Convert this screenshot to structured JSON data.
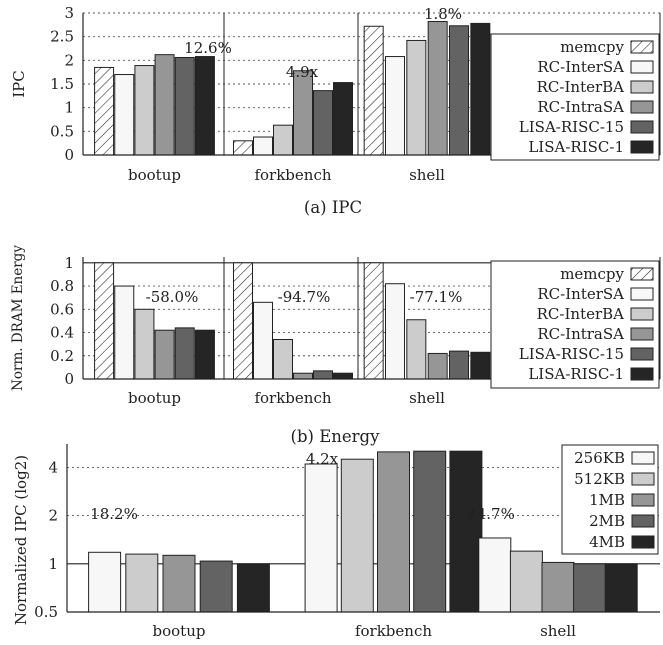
{
  "colors": {
    "memcpy": "#ffffff",
    "s1": "#f7f7f7",
    "s2": "#cccccc",
    "s3": "#969696",
    "s4": "#636363",
    "s5": "#252525",
    "axis": "#222222",
    "grid": "#555555"
  },
  "chart_data": [
    {
      "type": "bar",
      "caption": "(a) IPC",
      "ylabel": "IPC",
      "ylim": [
        0,
        3
      ],
      "yticks": [
        "0",
        "0.5",
        "1",
        "1.5",
        "2",
        "2.5",
        "3"
      ],
      "ytick_values": [
        0,
        0.5,
        1,
        1.5,
        2,
        2.5,
        3
      ],
      "grid": true,
      "legend_position": "right",
      "categories": [
        "bootup",
        "forkbench",
        "shell"
      ],
      "series": [
        {
          "name": "memcpy",
          "hatched": true,
          "values": [
            1.85,
            0.3,
            2.72
          ]
        },
        {
          "name": "RC-InterSA",
          "values": [
            1.7,
            0.38,
            2.08
          ]
        },
        {
          "name": "RC-InterBA",
          "values": [
            1.89,
            0.63,
            2.42
          ]
        },
        {
          "name": "RC-IntraSA",
          "values": [
            2.12,
            1.78,
            2.82
          ]
        },
        {
          "name": "LISA-RISC-15",
          "values": [
            2.06,
            1.36,
            2.73
          ]
        },
        {
          "name": "LISA-RISC-1",
          "values": [
            2.08,
            1.53,
            2.78
          ]
        }
      ],
      "annotations": [
        "12.6%",
        "4.9x",
        "1.8%"
      ]
    },
    {
      "type": "bar",
      "caption": "(b) Energy",
      "ylabel": "Norm. DRAM Energy",
      "ylim": [
        0,
        1.05
      ],
      "yticks": [
        "0",
        "0.2",
        "0.4",
        "0.6",
        "0.8",
        "1"
      ],
      "ytick_values": [
        0,
        0.2,
        0.4,
        0.6,
        0.8,
        1
      ],
      "grid": true,
      "legend_position": "right",
      "categories": [
        "bootup",
        "forkbench",
        "shell"
      ],
      "series": [
        {
          "name": "memcpy",
          "hatched": true,
          "values": [
            1.0,
            1.0,
            1.0
          ]
        },
        {
          "name": "RC-InterSA",
          "values": [
            0.8,
            0.66,
            0.82
          ]
        },
        {
          "name": "RC-InterBA",
          "values": [
            0.6,
            0.34,
            0.51
          ]
        },
        {
          "name": "RC-IntraSA",
          "values": [
            0.42,
            0.05,
            0.22
          ]
        },
        {
          "name": "LISA-RISC-15",
          "values": [
            0.44,
            0.07,
            0.24
          ]
        },
        {
          "name": "LISA-RISC-1",
          "values": [
            0.42,
            0.05,
            0.23
          ]
        }
      ],
      "annotations": [
        "-58.0%",
        "-94.7%",
        "-77.1%"
      ]
    },
    {
      "type": "bar",
      "caption": "",
      "ylabel": "Normalized IPC (log2)",
      "yscale": "log2",
      "ylim": [
        0.5,
        5.6
      ],
      "yticks": [
        "0.5",
        "1",
        "2",
        "4"
      ],
      "ytick_values": [
        0.5,
        1,
        2,
        4
      ],
      "grid": true,
      "legend_position": "top-right",
      "categories": [
        "bootup",
        "forkbench",
        "shell"
      ],
      "series": [
        {
          "name": "256KB",
          "values": [
            1.18,
            4.2,
            1.45
          ]
        },
        {
          "name": "512KB",
          "values": [
            1.15,
            4.5,
            1.2
          ]
        },
        {
          "name": "1MB",
          "values": [
            1.13,
            5.0,
            1.02
          ]
        },
        {
          "name": "2MB",
          "values": [
            1.04,
            5.05,
            1.0
          ]
        },
        {
          "name": "4MB",
          "values": [
            1.0,
            5.05,
            1.0
          ]
        }
      ],
      "annotations": [
        "18.2%",
        "4.2x",
        "44.7%"
      ]
    }
  ]
}
